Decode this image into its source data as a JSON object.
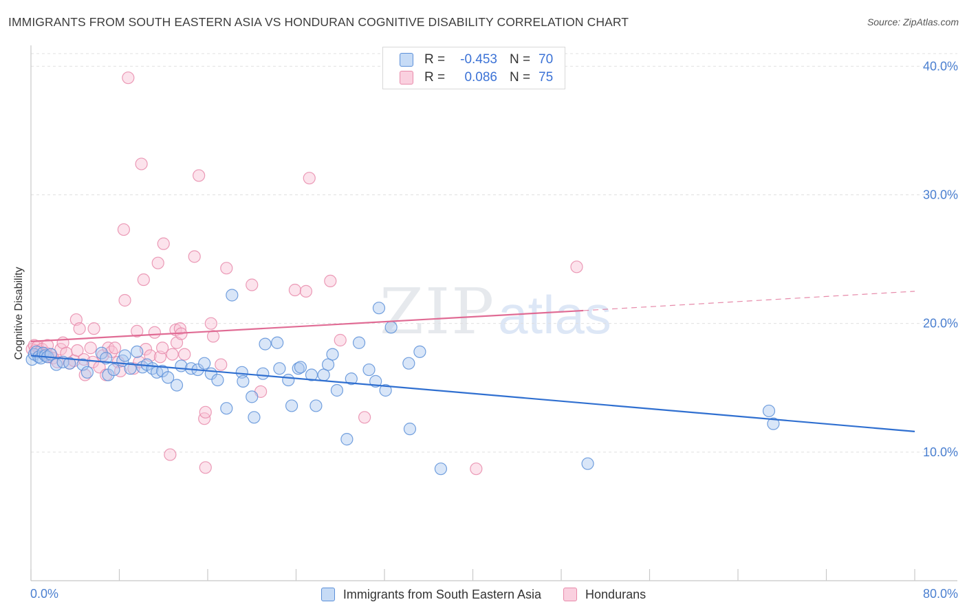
{
  "title": "IMMIGRANTS FROM SOUTH EASTERN ASIA VS HONDURAN COGNITIVE DISABILITY CORRELATION CHART",
  "source": "Source: ZipAtlas.com",
  "watermark": {
    "zip": "ZIP",
    "atlas": "atlas"
  },
  "legend_top": {
    "r_label": "R =",
    "n_label": "N =",
    "rows": [
      {
        "r": "-0.453",
        "n": "70"
      },
      {
        "r": "0.086",
        "n": "75"
      }
    ]
  },
  "colors": {
    "blue_fill": "#aac8f0",
    "blue_stroke": "#5b8fd8",
    "blue_line": "#2f6fd0",
    "pink_fill": "#f8c0d4",
    "pink_stroke": "#e88aaa",
    "pink_line": "#e06b94",
    "grid": "#e0e0e0",
    "axis": "#c8c8c8"
  },
  "chart_data": {
    "type": "scatter",
    "title": "IMMIGRANTS FROM SOUTH EASTERN ASIA VS HONDURAN COGNITIVE DISABILITY CORRELATION CHART",
    "xlabel": "",
    "ylabel": "Cognitive Disability",
    "xlim": [
      0,
      80
    ],
    "ylim": [
      0,
      40.98
    ],
    "x_tick_labels": [
      "0.0%",
      "80.0%"
    ],
    "y_ticks": [
      10,
      20,
      30,
      40
    ],
    "y_tick_labels": [
      "10.0%",
      "20.0%",
      "30.0%",
      "40.0%"
    ],
    "grid": true,
    "legend_position": "bottom",
    "series": [
      {
        "name": "Immigrants from South Eastern Asia",
        "color": "blue",
        "trend": {
          "x": [
            0,
            80
          ],
          "y": [
            17.5,
            11.6
          ]
        },
        "points": [
          [
            0.1,
            17.2
          ],
          [
            0.3,
            17.6
          ],
          [
            0.5,
            17.8
          ],
          [
            0.7,
            17.4
          ],
          [
            0.9,
            17.3
          ],
          [
            1.1,
            17.7
          ],
          [
            1.3,
            17.5
          ],
          [
            1.5,
            17.4
          ],
          [
            1.8,
            17.6
          ],
          [
            2.3,
            16.8
          ],
          [
            2.9,
            17.0
          ],
          [
            3.5,
            16.9
          ],
          [
            4.7,
            16.8
          ],
          [
            5.1,
            16.2
          ],
          [
            6.4,
            17.7
          ],
          [
            6.8,
            17.3
          ],
          [
            7.0,
            16.0
          ],
          [
            7.5,
            16.4
          ],
          [
            8.3,
            17.1
          ],
          [
            8.5,
            17.5
          ],
          [
            9.0,
            16.5
          ],
          [
            9.6,
            17.8
          ],
          [
            10.1,
            16.6
          ],
          [
            10.5,
            16.8
          ],
          [
            11.0,
            16.5
          ],
          [
            11.4,
            16.2
          ],
          [
            11.9,
            16.3
          ],
          [
            12.4,
            15.8
          ],
          [
            13.2,
            15.2
          ],
          [
            13.6,
            16.7
          ],
          [
            14.5,
            16.5
          ],
          [
            15.1,
            16.4
          ],
          [
            15.7,
            16.9
          ],
          [
            16.3,
            16.1
          ],
          [
            16.9,
            15.6
          ],
          [
            17.7,
            13.4
          ],
          [
            18.2,
            22.2
          ],
          [
            19.1,
            16.2
          ],
          [
            19.2,
            15.5
          ],
          [
            20.0,
            14.3
          ],
          [
            20.2,
            12.7
          ],
          [
            21.0,
            16.1
          ],
          [
            21.2,
            18.4
          ],
          [
            22.3,
            18.5
          ],
          [
            22.5,
            16.5
          ],
          [
            23.3,
            15.6
          ],
          [
            23.6,
            13.6
          ],
          [
            24.2,
            16.5
          ],
          [
            24.4,
            16.6
          ],
          [
            25.4,
            16.0
          ],
          [
            25.8,
            13.6
          ],
          [
            26.5,
            16.0
          ],
          [
            26.9,
            16.8
          ],
          [
            27.3,
            17.6
          ],
          [
            27.7,
            14.8
          ],
          [
            28.6,
            11.0
          ],
          [
            29.0,
            15.7
          ],
          [
            29.7,
            18.5
          ],
          [
            30.6,
            16.4
          ],
          [
            31.2,
            15.5
          ],
          [
            31.5,
            21.2
          ],
          [
            32.1,
            14.8
          ],
          [
            32.6,
            19.7
          ],
          [
            34.2,
            16.9
          ],
          [
            34.3,
            11.8
          ],
          [
            35.2,
            17.8
          ],
          [
            37.1,
            8.7
          ],
          [
            50.4,
            9.1
          ],
          [
            66.8,
            13.2
          ],
          [
            67.2,
            12.2
          ]
        ]
      },
      {
        "name": "Hondurans",
        "color": "pink",
        "trend": {
          "x": [
            0,
            50
          ],
          "y": [
            18.6,
            21.0
          ]
        },
        "trend_dashed": {
          "x": [
            50,
            80
          ],
          "y": [
            21.0,
            22.5
          ]
        },
        "points": [
          [
            0.1,
            18.0
          ],
          [
            0.3,
            18.3
          ],
          [
            0.4,
            17.9
          ],
          [
            0.6,
            18.2
          ],
          [
            0.8,
            17.8
          ],
          [
            1.0,
            18.0
          ],
          [
            1.2,
            17.6
          ],
          [
            1.4,
            17.7
          ],
          [
            1.6,
            17.4
          ],
          [
            1.8,
            17.6
          ],
          [
            2.0,
            17.3
          ],
          [
            2.7,
            18.0
          ],
          [
            2.9,
            18.5
          ],
          [
            3.2,
            17.7
          ],
          [
            3.5,
            16.9
          ],
          [
            3.9,
            17.1
          ],
          [
            4.2,
            17.9
          ],
          [
            4.1,
            20.3
          ],
          [
            4.4,
            19.6
          ],
          [
            4.8,
            17.2
          ],
          [
            4.9,
            16.0
          ],
          [
            5.4,
            18.1
          ],
          [
            5.6,
            17.0
          ],
          [
            5.7,
            19.6
          ],
          [
            6.2,
            16.6
          ],
          [
            6.5,
            17.5
          ],
          [
            6.8,
            16.0
          ],
          [
            7.0,
            18.1
          ],
          [
            7.3,
            17.8
          ],
          [
            7.6,
            18.1
          ],
          [
            7.9,
            17.0
          ],
          [
            8.1,
            16.3
          ],
          [
            8.4,
            27.3
          ],
          [
            8.5,
            21.8
          ],
          [
            8.8,
            39.1
          ],
          [
            9.3,
            16.5
          ],
          [
            9.6,
            19.4
          ],
          [
            9.8,
            17.0
          ],
          [
            10.0,
            32.4
          ],
          [
            10.2,
            23.4
          ],
          [
            10.4,
            18.0
          ],
          [
            10.8,
            17.5
          ],
          [
            11.2,
            19.3
          ],
          [
            11.5,
            24.7
          ],
          [
            11.7,
            17.4
          ],
          [
            11.9,
            18.1
          ],
          [
            12.0,
            26.2
          ],
          [
            12.6,
            9.8
          ],
          [
            12.8,
            17.6
          ],
          [
            13.1,
            19.5
          ],
          [
            13.2,
            18.5
          ],
          [
            13.5,
            19.6
          ],
          [
            13.6,
            19.2
          ],
          [
            13.9,
            17.6
          ],
          [
            14.8,
            25.2
          ],
          [
            15.2,
            31.5
          ],
          [
            15.7,
            12.6
          ],
          [
            15.8,
            13.1
          ],
          [
            15.8,
            8.8
          ],
          [
            16.3,
            20.0
          ],
          [
            16.5,
            19.0
          ],
          [
            17.2,
            16.8
          ],
          [
            17.7,
            24.3
          ],
          [
            20.0,
            23.0
          ],
          [
            20.8,
            14.7
          ],
          [
            23.9,
            22.6
          ],
          [
            24.9,
            22.5
          ],
          [
            25.2,
            31.3
          ],
          [
            27.1,
            23.3
          ],
          [
            28.0,
            18.7
          ],
          [
            30.2,
            12.7
          ],
          [
            40.3,
            8.7
          ],
          [
            49.4,
            24.4
          ],
          [
            1.5,
            18.3
          ],
          [
            2.4,
            17.0
          ]
        ]
      }
    ]
  },
  "legend_bottom": [
    {
      "label": "Immigrants from South Eastern Asia"
    },
    {
      "label": "Hondurans"
    }
  ]
}
